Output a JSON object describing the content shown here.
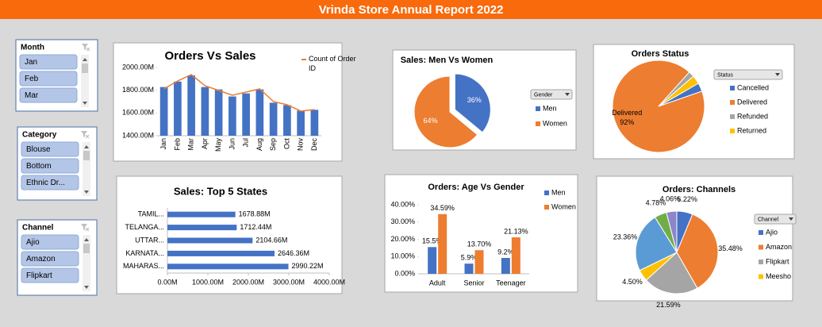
{
  "header": {
    "title": "Vrinda Store Annual Report 2022"
  },
  "slicers": [
    {
      "title": "Month",
      "items": [
        "Jan",
        "Feb",
        "Mar"
      ]
    },
    {
      "title": "Category",
      "items": [
        "Blouse",
        "Bottom",
        "Ethnic Dr..."
      ]
    },
    {
      "title": "Channel",
      "items": [
        "Ajio",
        "Amazon",
        "Flipkart"
      ]
    }
  ],
  "chart_data": [
    {
      "type": "combo",
      "title": "Orders Vs Sales",
      "categories": [
        "Jan",
        "Feb",
        "Mar",
        "Apr",
        "May",
        "Jun",
        "Jul",
        "Aug",
        "Sep",
        "Oct",
        "Nov",
        "Dec"
      ],
      "ylim": [
        1400,
        2000
      ],
      "yticks": [
        {
          "value": 1400,
          "label": "1400.00M"
        },
        {
          "value": 1600,
          "label": "1600.00M"
        },
        {
          "value": 1800,
          "label": "1800.00M"
        },
        {
          "value": 2000,
          "label": "2000.00M"
        }
      ],
      "y2lim": [
        1500,
        3000
      ],
      "series": [
        {
          "color": "#4472c4",
          "values": [
            1828,
            1876,
            1931,
            1828,
            1807,
            1745,
            1772,
            1807,
            1690,
            1669,
            1621,
            1628
          ]
        },
        {
          "name": "Count of Order ID",
          "color": "#ed7d31",
          "axis": "y2",
          "values": [
            2529,
            2703,
            2843,
            2599,
            2494,
            2390,
            2459,
            2529,
            2250,
            2180,
            2041,
            2076
          ]
        }
      ]
    },
    {
      "type": "pie",
      "title": "Sales: Men Vs Women",
      "legend_title": "Gender",
      "categories": [
        "Men",
        "Women"
      ],
      "values": [
        36,
        64
      ],
      "value_labels": [
        "36%",
        "64%"
      ],
      "colors": [
        "#4472c4",
        "#ed7d31"
      ],
      "data_labels": "value"
    },
    {
      "type": "pie",
      "title": "Orders Status",
      "legend_title": "Status",
      "categories": [
        "Cancelled",
        "Delivered",
        "Refunded",
        "Returned"
      ],
      "values": [
        3,
        92,
        2,
        3
      ],
      "value_labels": [
        null,
        "92%",
        null,
        null
      ],
      "colors": [
        "#4472c4",
        "#ed7d31",
        "#a5a5a5",
        "#ffc000"
      ],
      "data_labels": "category_and_value"
    },
    {
      "type": "hbar",
      "title": "Sales: Top 5 States",
      "categories": [
        "TAMIL...",
        "TELANGA...",
        "UTTAR...",
        "KARNATA...",
        "MAHARAS..."
      ],
      "values": [
        1678.88,
        1712.44,
        2104.66,
        2646.36,
        2990.22
      ],
      "value_labels": [
        "1678.88M",
        "1712.44M",
        "2104.66M",
        "2646.36M",
        "2990.22M"
      ],
      "color": "#4472c4",
      "xlim": [
        0,
        4000
      ],
      "xticks": [
        {
          "value": 0,
          "label": "0.00M"
        },
        {
          "value": 1000,
          "label": "1000.00M"
        },
        {
          "value": 2000,
          "label": "2000.00M"
        },
        {
          "value": 3000,
          "label": "3000.00M"
        },
        {
          "value": 4000,
          "label": "4000.00M"
        }
      ]
    },
    {
      "type": "grouped_bar",
      "title": "Orders: Age Vs Gender",
      "categories": [
        "Adult",
        "Senior",
        "Teenager"
      ],
      "ylim": [
        0,
        40
      ],
      "yticks": [
        {
          "value": 0,
          "label": "0.00%"
        },
        {
          "value": 10,
          "label": "10.00%"
        },
        {
          "value": 20,
          "label": "20.00%"
        },
        {
          "value": 30,
          "label": "30.00%"
        },
        {
          "value": 40,
          "label": "40.00%"
        }
      ],
      "series": [
        {
          "name": "Men",
          "color": "#4472c4",
          "values": [
            15.5,
            5.9,
            9.2
          ],
          "value_labels": [
            "15.5%",
            "5.9%",
            "9.2%"
          ]
        },
        {
          "name": "Women",
          "color": "#ed7d31",
          "values": [
            34.59,
            13.7,
            21.13
          ],
          "value_labels": [
            "34.59%",
            "13.70%",
            "21.13%"
          ]
        }
      ]
    },
    {
      "type": "pie",
      "title": "Orders: Channels",
      "legend_title": "Channel",
      "categories": [
        "Ajio",
        "Amazon",
        "Flipkart",
        "Meesho",
        null,
        null,
        null
      ],
      "values": [
        6.22,
        35.48,
        21.59,
        4.5,
        23.36,
        4.78,
        4.06
      ],
      "value_labels": [
        "6.22%",
        "35.48%",
        "21.59%",
        "4.50%",
        "23.36%",
        "4.78%",
        "4.06%"
      ],
      "colors": [
        "#4472c4",
        "#ed7d31",
        "#a5a5a5",
        "#ffc000",
        "#5b9bd5",
        "#70ad47",
        "#8e86c9"
      ],
      "data_labels": "value"
    }
  ]
}
